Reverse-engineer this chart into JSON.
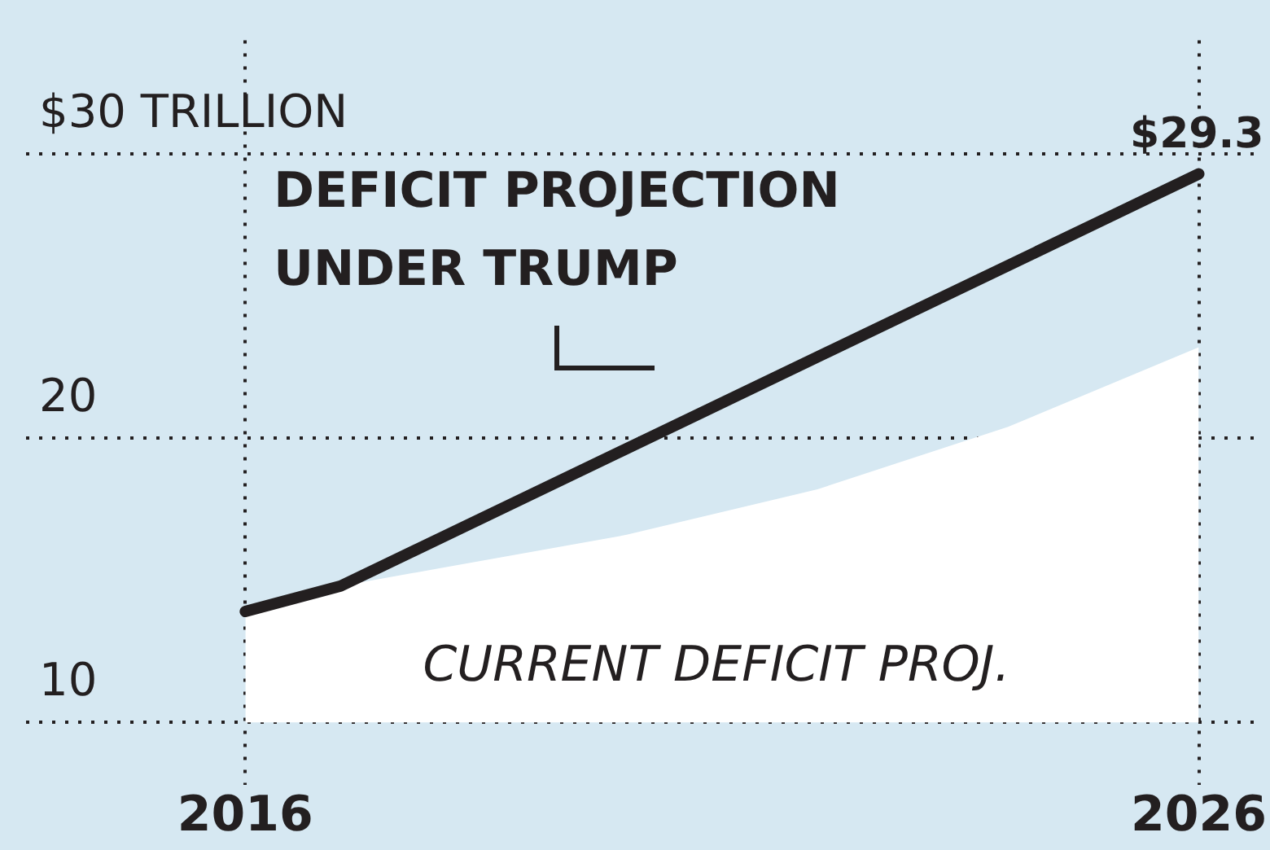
{
  "chart_data": {
    "type": "line",
    "series": [
      {
        "type": "area",
        "color": "#ffffff",
        "x": [
          2016,
          2017,
          2018,
          2020,
          2022,
          2024,
          2026
        ],
        "values": [
          13.9,
          14.8,
          15.4,
          16.6,
          18.2,
          20.4,
          23.2
        ]
      },
      {
        "color": "#231f20",
        "x": [
          2016,
          2017,
          2026
        ],
        "values": [
          13.9,
          14.8,
          29.3
        ],
        "value_labels": [
          null,
          null,
          "$29.3"
        ]
      }
    ],
    "xlim": [
      2013.7,
      2026.6
    ],
    "xticks": [
      2016,
      2026
    ],
    "ylim": [
      7.8,
      34
    ],
    "yticks": [
      10,
      20,
      {
        "value": 30,
        "label": "$30 TRILLION"
      }
    ],
    "grid": true,
    "line_style": "solid",
    "marker": "none",
    "legend": false,
    "annotations": [
      "DEFICIT PROJECTION UNDER TRUMP",
      "CURRENT DEFICIT PROJ."
    ]
  }
}
